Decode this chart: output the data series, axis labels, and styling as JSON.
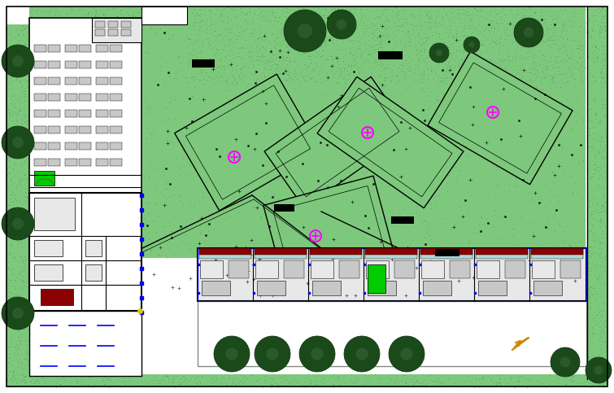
{
  "bg": "#ffffff",
  "green_tex": "#7dc87d",
  "green_dark": "#3a7a3a",
  "green_med": "#55a855",
  "black": "#000000",
  "gray_light": "#e8e8e8",
  "gray_mid": "#c8c8c8",
  "gray_dark": "#888888",
  "blue": "#0000ff",
  "cyan": "#00cccc",
  "magenta": "#ff00ff",
  "yellow": "#cccc00",
  "orange": "#cc8800",
  "dark_red": "#8B0000",
  "white": "#ffffff",
  "green_bright": "#00cc00"
}
